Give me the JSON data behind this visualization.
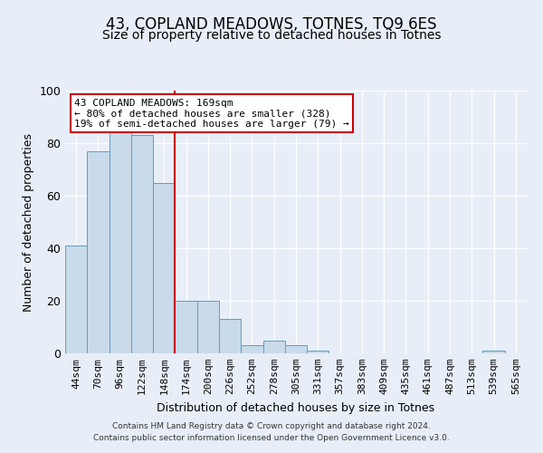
{
  "title": "43, COPLAND MEADOWS, TOTNES, TQ9 6ES",
  "subtitle": "Size of property relative to detached houses in Totnes",
  "xlabel": "Distribution of detached houses by size in Totnes",
  "ylabel": "Number of detached properties",
  "bar_labels": [
    "44sqm",
    "70sqm",
    "96sqm",
    "122sqm",
    "148sqm",
    "174sqm",
    "200sqm",
    "226sqm",
    "252sqm",
    "278sqm",
    "305sqm",
    "331sqm",
    "357sqm",
    "383sqm",
    "409sqm",
    "435sqm",
    "461sqm",
    "487sqm",
    "513sqm",
    "539sqm",
    "565sqm"
  ],
  "bar_values": [
    41,
    77,
    84,
    83,
    65,
    20,
    20,
    13,
    3,
    5,
    3,
    1,
    0,
    0,
    0,
    0,
    0,
    0,
    0,
    1,
    0
  ],
  "bar_color": "#c9daea",
  "bar_edge_color": "#5a9ec9",
  "property_line_color": "#cc0000",
  "property_line_index": 5,
  "annotation_title": "43 COPLAND MEADOWS: 169sqm",
  "annotation_line1": "← 80% of detached houses are smaller (328)",
  "annotation_line2": "19% of semi-detached houses are larger (79) →",
  "annotation_box_color": "#ffffff",
  "annotation_box_edge": "#cc0000",
  "ylim": [
    0,
    100
  ],
  "yticks": [
    0,
    20,
    40,
    60,
    80,
    100
  ],
  "footer1": "Contains HM Land Registry data © Crown copyright and database right 2024.",
  "footer2": "Contains public sector information licensed under the Open Government Licence v3.0.",
  "background_color": "#e8eef8",
  "plot_bg_color": "#e8eef8",
  "grid_color": "#ffffff",
  "title_fontsize": 12,
  "subtitle_fontsize": 10,
  "axis_label_fontsize": 9,
  "tick_fontsize": 8,
  "annotation_fontsize": 8,
  "footer_fontsize": 6.5
}
